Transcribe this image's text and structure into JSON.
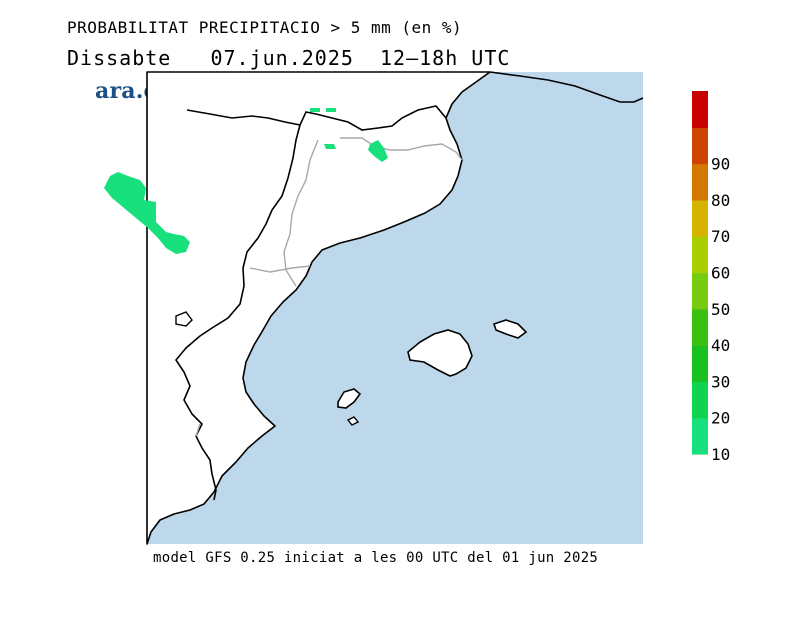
{
  "header": {
    "variable": "PROBABILITAT PRECIPITACIO > 5 mm (en %)",
    "day": "Dissabte",
    "date": "07.jun.2025",
    "period": "12–18h UTC"
  },
  "logo": {
    "text": "ara.cat",
    "color": "#1b4f85"
  },
  "footer": {
    "model_info": "model GFS 0.25 iniciat a les 00 UTC del 01 jun 2025"
  },
  "colors": {
    "sea": "#bcd8ea",
    "land": "#ffffff",
    "coast": "#000000",
    "border": "#a8a8a8"
  },
  "colorbar": {
    "levels": [
      {
        "label": "10",
        "color": "#18e07c"
      },
      {
        "label": "20",
        "color": "#10d450"
      },
      {
        "label": "30",
        "color": "#18c020"
      },
      {
        "label": "40",
        "color": "#3cc010"
      },
      {
        "label": "50",
        "color": "#78cc10"
      },
      {
        "label": "60",
        "color": "#a8d000"
      },
      {
        "label": "70",
        "color": "#d4b400"
      },
      {
        "label": "80",
        "color": "#d47800"
      },
      {
        "label": "90",
        "color": "#cc4400"
      },
      {
        "label": "",
        "color": "#c80000"
      }
    ]
  },
  "precip_areas": [
    {
      "name": "aragon-west",
      "probability": 10
    },
    {
      "name": "pyrenees-north-1",
      "probability": 10
    },
    {
      "name": "pyrenees-north-2",
      "probability": 10
    },
    {
      "name": "pyrenees-aran",
      "probability": 10
    },
    {
      "name": "pyrenees-east",
      "probability": 10
    }
  ]
}
